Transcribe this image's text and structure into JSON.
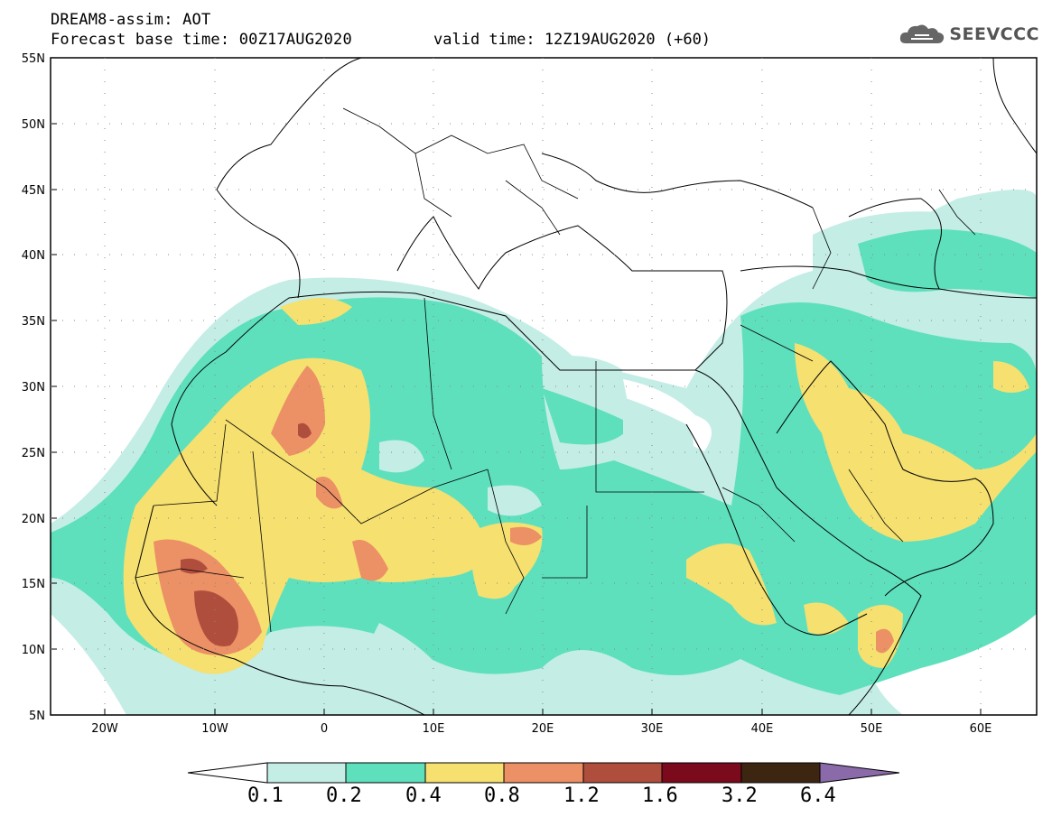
{
  "title": {
    "line1": "DREAM8-assim: AOT",
    "line2": "Forecast base time: 00Z17AUG2020",
    "valid": "valid time: 12Z19AUG2020 (+60)"
  },
  "logo": {
    "text": "SEEVCCC",
    "icon": "cloud-icon"
  },
  "map": {
    "lat_labels": [
      "55N",
      "50N",
      "45N",
      "40N",
      "35N",
      "30N",
      "25N",
      "20N",
      "15N",
      "10N",
      "5N"
    ],
    "lon_labels": [
      "20W",
      "10W",
      "0",
      "10E",
      "20E",
      "30E",
      "40E",
      "50E",
      "60E"
    ],
    "extent": {
      "lon": [
        -25,
        65
      ],
      "lat": [
        5,
        55
      ]
    }
  },
  "legend": {
    "levels": [
      "0.1",
      "0.2",
      "0.4",
      "0.8",
      "1.2",
      "1.6",
      "3.2",
      "6.4"
    ],
    "colors": [
      "#ffffff",
      "#c4ede6",
      "#5ee0bd",
      "#f5e070",
      "#ec9065",
      "#b04e3e",
      "#7a0a1c",
      "#3c2612",
      "#8a6aa8"
    ]
  }
}
